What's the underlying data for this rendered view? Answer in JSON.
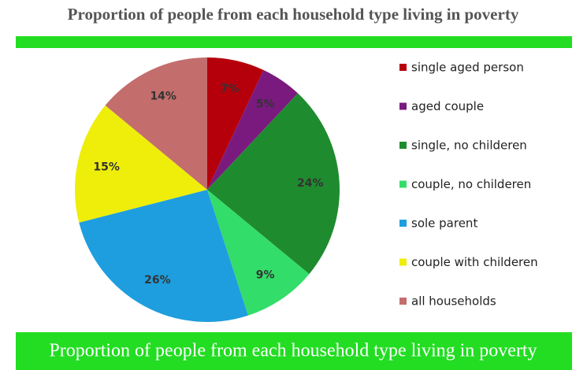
{
  "chart_data": {
    "type": "pie",
    "title": "Proportion of people from each household type living in poverty",
    "annotations": [
      "Proportion of people from each household type living in poverty"
    ],
    "categories": [
      "single aged person",
      "aged couple",
      "single, no childeren",
      "couple, no childeren",
      "sole parent",
      "couple with childeren",
      "all households"
    ],
    "values": [
      7,
      5,
      24,
      9,
      26,
      15,
      14
    ],
    "value_labels": [
      "7%",
      "5%",
      "24%",
      "9%",
      "26%",
      "15%",
      "14%"
    ],
    "colors": [
      "#b5000c",
      "#7a1a7e",
      "#1f8b2f",
      "#33dd6a",
      "#1e9ede",
      "#eeee0a",
      "#c46d6d"
    ],
    "legend": "right"
  }
}
